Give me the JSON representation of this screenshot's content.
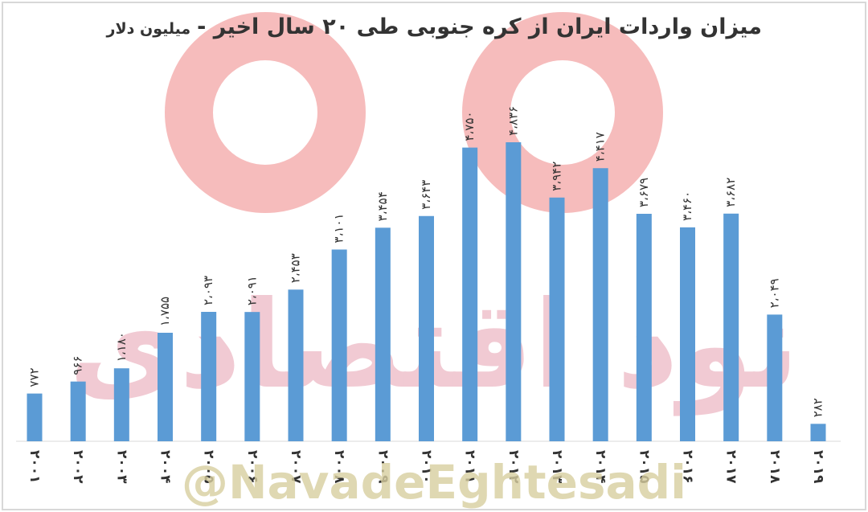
{
  "chart_data": {
    "type": "bar",
    "title": "میزان واردات ایران از کره جنوبی طی ۲۰ سال اخیر -",
    "subtitle": "میلیون دلار",
    "categories": [
      "۲۰۰۱",
      "۲۰۰۲",
      "۲۰۰۳",
      "۲۰۰۴",
      "۲۰۰۵",
      "۲۰۰۶",
      "۲۰۰۷",
      "۲۰۰۸",
      "۲۰۰۹",
      "۲۰۱۰",
      "۲۰۱۱",
      "۲۰۱۲",
      "۲۰۱۳",
      "۲۰۱۴",
      "۲۰۱۵",
      "۲۰۱۶",
      "۲۰۱۷",
      "۲۰۱۸",
      "۲۰۱۹"
    ],
    "values": [
      772,
      966,
      1180,
      1755,
      2093,
      2091,
      2453,
      3101,
      3454,
      3643,
      4750,
      4836,
      3942,
      4417,
      3679,
      3460,
      3682,
      2049,
      282
    ],
    "value_labels": [
      "۷۷۲",
      "۹۶۶",
      "۱،۱۸۰",
      "۱،۷۵۵",
      "۲،۰۹۳",
      "۲،۰۹۱",
      "۲،۴۵۳",
      "۳،۱۰۱",
      "۳،۴۵۴",
      "۳،۶۴۳",
      "۴،۷۵۰",
      "۴،۸۳۶",
      "۳،۹۴۲",
      "۴،۴۱۷",
      "۳،۶۷۹",
      "۳،۴۶۰",
      "۳،۶۸۲",
      "۲،۰۴۹",
      "۲۸۲"
    ],
    "color": "#5b9bd5",
    "watermark": "نود اقتصادی",
    "handle": "@NavadeEghtesadi"
  }
}
